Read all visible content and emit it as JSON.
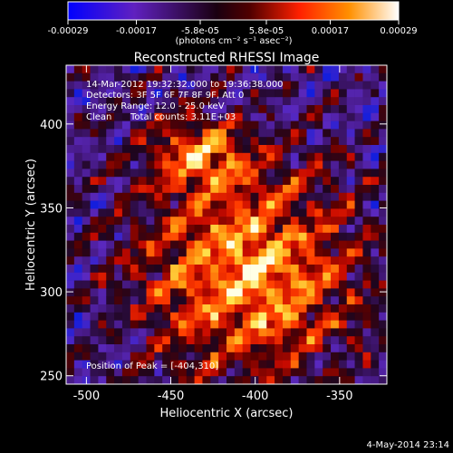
{
  "colorbar": {
    "tick_labels": [
      "-0.00029",
      "-0.00017",
      "-5.8e-05",
      "5.8e-05",
      "0.00017",
      "0.00029"
    ],
    "tick_values": [
      -0.00029,
      -0.00017,
      -5.8e-05,
      5.8e-05,
      0.00017,
      0.00029
    ],
    "range": [
      -0.00029,
      0.00029
    ],
    "units": "(photons cm⁻² s⁻¹ asec⁻²)"
  },
  "chart_data": {
    "type": "heatmap",
    "title": "Reconstructed RHESSI Image",
    "xlabel": "Heliocentric X (arcsec)",
    "ylabel": "Heliocentric Y (arcsec)",
    "xlim": [
      -512,
      -322
    ],
    "ylim": [
      245,
      435
    ],
    "x_ticks": [
      -500,
      -450,
      -400,
      -350
    ],
    "x_tick_labels": [
      "-500",
      "-450",
      "-400",
      "-350"
    ],
    "y_ticks": [
      250,
      300,
      350,
      400
    ],
    "y_tick_labels": [
      "250",
      "300",
      "350",
      "400"
    ],
    "peak": [
      -404,
      310
    ],
    "colormap": [
      "#0000ff",
      "#6020c0",
      "#4a1a80",
      "#400000",
      "#b00000",
      "#ff3000",
      "#ff9000",
      "#ffe040",
      "#ffffff"
    ]
  },
  "annotations": {
    "time_range": "14-Mar-2012 19:32:32.000 to 19:36:38.000",
    "detectors": "Detectors: 3F 5F 6F 7F 8F 9F, Att 0",
    "energy": "Energy Range: 12.0 - 25.0 keV",
    "clean": "Clean",
    "counts": "Total counts: 3.11E+03",
    "peak_label": "Position of Peak = [-404,310]"
  },
  "footer": {
    "timestamp": "4-May-2014 23:14"
  }
}
